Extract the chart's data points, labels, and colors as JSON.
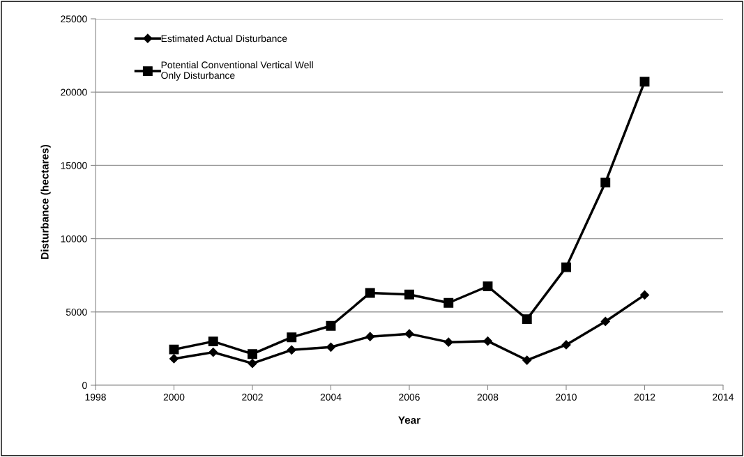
{
  "chart_data": {
    "type": "line",
    "xlabel": "Year",
    "ylabel": "Disturbance (hectares)",
    "x": [
      2000,
      2001,
      2002,
      2003,
      2004,
      2005,
      2006,
      2007,
      2008,
      2009,
      2010,
      2011,
      2012
    ],
    "series": [
      {
        "name": "Estimated Actual Disturbance",
        "color": "#000000",
        "marker": "diamond",
        "values": [
          1810,
          2250,
          1490,
          2410,
          2600,
          3320,
          3510,
          2940,
          3010,
          1710,
          2760,
          4350,
          6160
        ]
      },
      {
        "name": "Potential Conventional Vertical Well\nOnly Disturbance",
        "color": "#000000",
        "marker": "square",
        "values": [
          2440,
          2990,
          2130,
          3270,
          4050,
          6300,
          6190,
          5620,
          6750,
          4510,
          8050,
          13830,
          20710
        ]
      }
    ],
    "xlim": [
      1998,
      2014
    ],
    "xticks": [
      1998,
      2000,
      2002,
      2004,
      2006,
      2008,
      2010,
      2012,
      2014
    ],
    "ylim": [
      0,
      25000
    ],
    "yticks": [
      0,
      5000,
      10000,
      15000,
      20000,
      25000
    ],
    "grid": "y",
    "legend": "top left",
    "line_style": "solid"
  }
}
